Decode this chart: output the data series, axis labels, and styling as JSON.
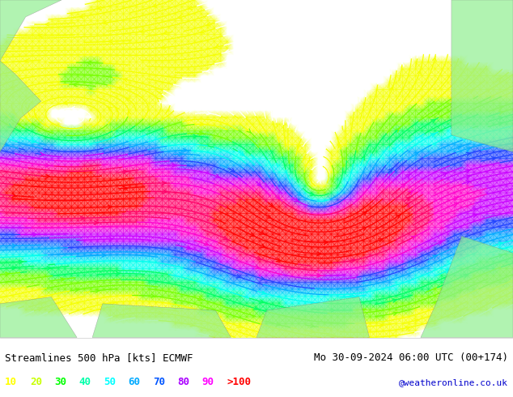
{
  "title_left": "Streamlines 500 hPa [kts] ECMWF",
  "title_right": "Mo 30-09-2024 06:00 UTC (00+174)",
  "credit": "@weatheronline.co.uk",
  "legend_values": [
    "10",
    "20",
    "30",
    "40",
    "50",
    "60",
    "70",
    "80",
    "90",
    ">100"
  ],
  "legend_colors": [
    "#ffff00",
    "#c8ff00",
    "#00ff00",
    "#00ffaa",
    "#00ffff",
    "#00aaff",
    "#0055ff",
    "#aa00ff",
    "#ff00ff",
    "#ff0000"
  ],
  "bg_color": "#ffffff",
  "map_bg": "#f0f0f0",
  "bottom_bar_color": "#ffffff",
  "title_color": "#000000",
  "credit_color": "#0000cc",
  "fig_width": 6.34,
  "fig_height": 4.9,
  "dpi": 100
}
